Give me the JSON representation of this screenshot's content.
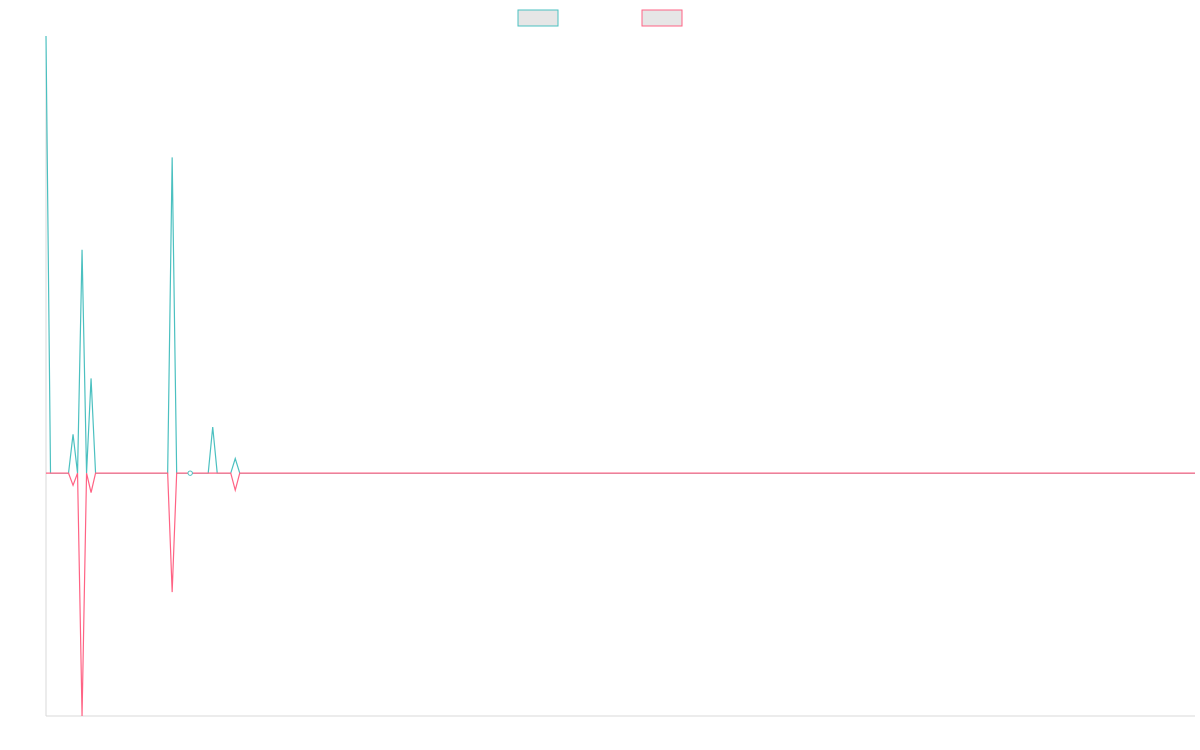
{
  "chart_data": {
    "type": "line",
    "title": "",
    "xlabel": "",
    "ylabel": "",
    "grid": false,
    "legend_position": "top-center",
    "x": [
      0,
      1,
      2,
      3,
      4,
      5,
      6,
      7,
      8,
      9,
      10,
      11,
      12,
      13,
      14,
      15,
      16,
      17,
      18,
      19,
      20,
      21,
      22,
      23,
      24,
      25,
      26,
      27,
      28,
      29,
      30,
      31,
      32,
      33,
      34,
      35,
      36,
      37,
      38,
      39,
      40,
      41,
      42,
      43,
      44,
      45,
      46,
      47,
      48,
      49,
      50,
      51,
      52,
      53,
      54,
      55,
      56,
      57,
      58,
      59,
      60,
      61,
      62,
      63,
      64,
      65,
      66,
      67,
      68,
      69,
      70,
      71,
      72,
      73,
      74,
      75,
      76,
      77,
      78,
      79,
      80,
      81,
      82,
      83,
      84,
      85,
      86,
      87,
      88,
      89,
      90,
      91,
      92,
      93,
      94,
      95,
      96,
      97,
      98,
      99,
      100,
      101,
      102,
      103,
      104,
      105,
      106,
      107,
      108,
      109,
      110,
      111,
      112,
      113,
      114,
      115,
      116,
      117,
      118,
      119,
      120,
      121,
      122,
      123,
      124,
      125,
      126,
      127,
      128,
      129,
      130,
      131,
      132,
      133,
      134,
      135,
      136,
      137,
      138,
      139,
      140,
      141,
      142,
      143,
      144,
      145,
      146,
      147,
      148,
      149,
      150,
      151,
      152,
      153,
      154,
      155,
      156,
      157,
      158,
      159,
      160,
      161,
      162,
      163,
      164,
      165,
      166,
      167,
      168,
      169,
      170,
      171,
      172,
      173,
      174,
      175,
      176,
      177,
      178,
      179,
      180,
      181,
      182,
      183,
      184,
      185,
      186,
      187,
      188,
      189,
      190,
      191,
      192,
      193,
      194,
      195,
      196,
      197,
      198,
      199,
      200,
      201,
      202,
      203,
      204,
      205,
      206,
      207,
      208,
      209,
      210,
      211,
      212,
      213,
      214,
      215,
      216,
      217,
      218,
      219,
      220,
      221,
      222,
      223,
      224,
      225,
      226,
      227,
      228,
      229,
      230,
      231,
      232,
      233,
      234,
      235,
      236,
      237,
      238,
      239,
      240,
      241,
      242,
      243,
      244,
      245,
      246,
      247,
      248,
      249,
      250,
      251,
      252,
      253,
      254,
      255
    ],
    "ylim": [
      -100,
      180
    ],
    "series": [
      {
        "color": "#4bc0c0",
        "spikes": [
          [
            0,
            180
          ],
          [
            6,
            16
          ],
          [
            8,
            92
          ],
          [
            10,
            39
          ],
          [
            28,
            130
          ],
          [
            37,
            19
          ],
          [
            42,
            6
          ]
        ]
      },
      {
        "color": "#ff6384",
        "spikes": [
          [
            6,
            -5
          ],
          [
            8,
            -100
          ],
          [
            10,
            -8
          ],
          [
            28,
            -49
          ],
          [
            42,
            -7
          ]
        ]
      }
    ]
  }
}
